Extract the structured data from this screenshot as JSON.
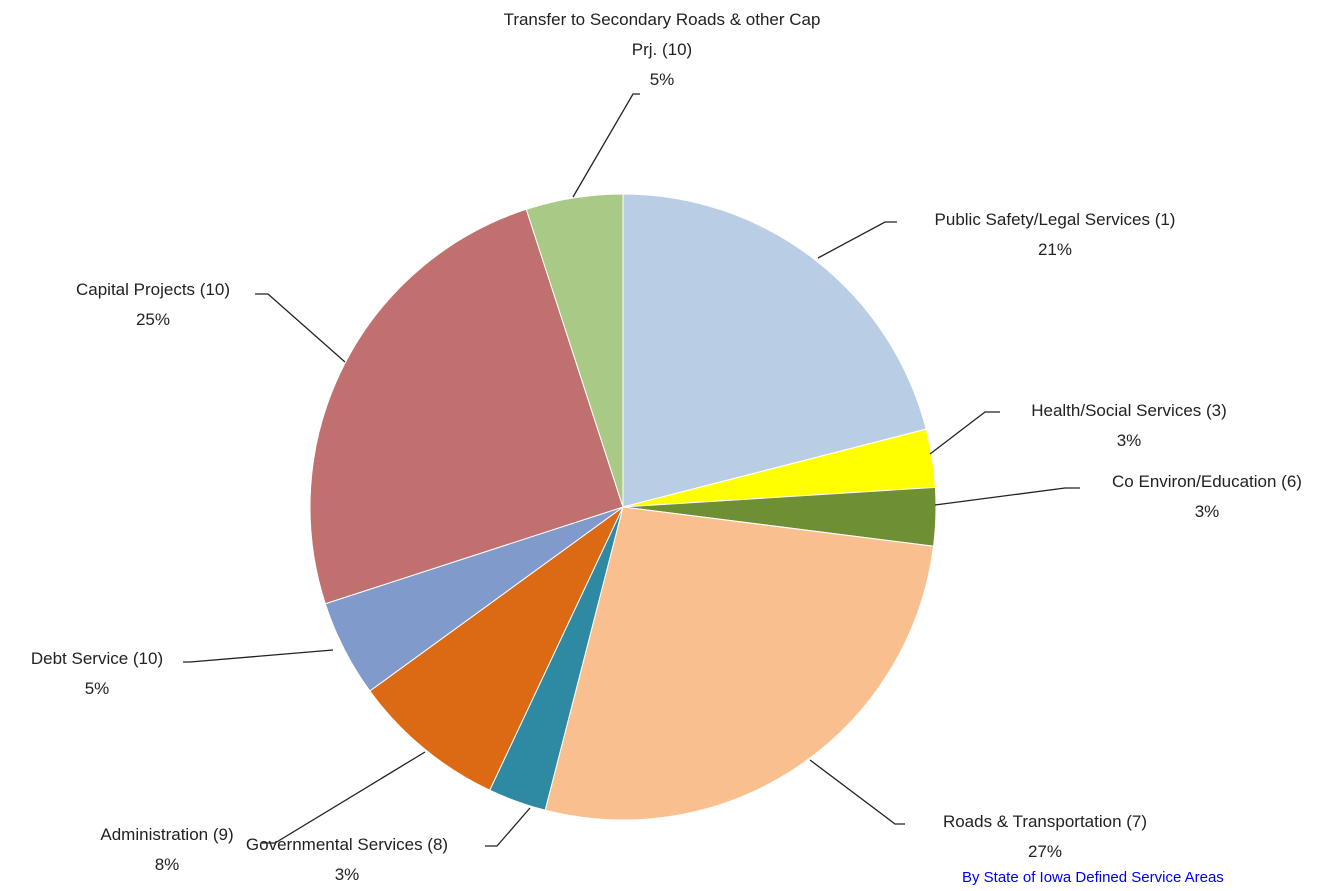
{
  "chart_data": {
    "type": "pie",
    "categories": [
      "Public Safety/Legal Services (1)",
      "Health/Social Services (3)",
      "Co Environ/Education (6)",
      "Roads & Transportation (7)",
      "Governmental Services (8)",
      "Administration (9)",
      "Debt Service (10)",
      "Capital Projects (10)",
      "Transfer to Secondary Roads & other Cap Prj. (10)"
    ],
    "values": [
      21,
      3,
      3,
      27,
      3,
      8,
      5,
      25,
      5
    ],
    "value_labels": [
      "21%",
      "3%",
      "3%",
      "27%",
      "3%",
      "8%",
      "5%",
      "25%",
      "5%"
    ],
    "colors": [
      "#b9cde5",
      "#ffff00",
      "#6f8f34",
      "#f9bf8f",
      "#2e8aa3",
      "#dc6a14",
      "#7f9acb",
      "#c0706e",
      "#a9c987"
    ],
    "annotation": "By State of Iowa Defined Service Areas"
  }
}
